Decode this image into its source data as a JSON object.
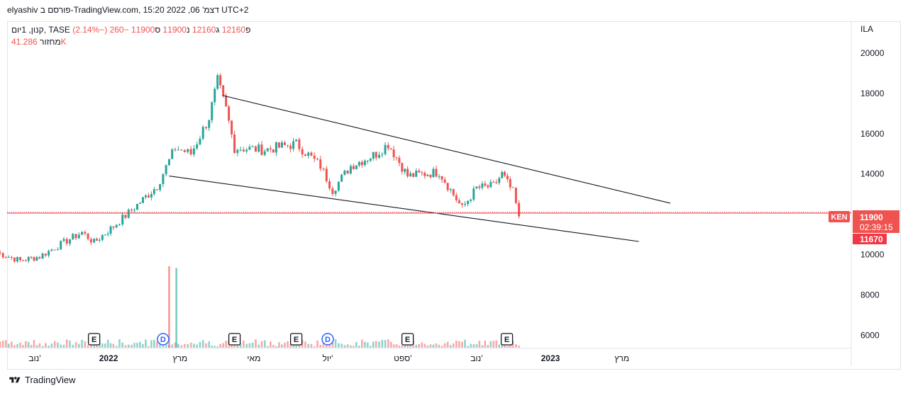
{
  "header": {
    "publisher": "elyashiv פורסם ב-TradingView.com",
    "timestamp": "דצמ' 06, 2022 15:20 UTC+2"
  },
  "legend": {
    "symbol": "קנון, 1יום, TASE",
    "open_label": "פ",
    "open": "12160",
    "high_label": "ג",
    "high": "12160",
    "low_label": "נ",
    "low": "11900",
    "close_label": "ס",
    "close": "11900",
    "change": "−260 (−2.14%)",
    "volume_label": "מחזור",
    "volume": "41.286K"
  },
  "price_axis": {
    "currency": "ILA",
    "ticks": [
      "20000",
      "18000",
      "16000",
      "14000",
      "10000",
      "8000",
      "6000"
    ]
  },
  "price_badges": {
    "ticker": "KEN",
    "last_price": "11900",
    "countdown": "02:39:15",
    "line_price": "11670"
  },
  "time_axis": {
    "labels": [
      "נוב'",
      "2022",
      "מרץ",
      "מאי",
      "יול'",
      "ספט'",
      "נוב'",
      "2023",
      "מרץ"
    ]
  },
  "events": [
    {
      "type": "E"
    },
    {
      "type": "D"
    },
    {
      "type": "E"
    },
    {
      "type": "E"
    },
    {
      "type": "D"
    },
    {
      "type": "E"
    },
    {
      "type": "E"
    }
  ],
  "colors": {
    "up": "#26a69a",
    "down": "#ef5350",
    "line": "#131722",
    "accent": "#f23645",
    "event_d": "#2962ff"
  },
  "chart_data": {
    "type": "candlestick",
    "y_range": [
      5000,
      21000
    ],
    "last_price": 11900,
    "horizontal_line": 11670,
    "price_path": [
      [
        "2021-10-01",
        10100
      ],
      [
        "2021-10-20",
        9700
      ],
      [
        "2021-11-05",
        9900
      ],
      [
        "2021-11-25",
        10600
      ],
      [
        "2021-12-10",
        11100
      ],
      [
        "2021-12-20",
        10600
      ],
      [
        "2022-01-05",
        11400
      ],
      [
        "2022-01-20",
        12200
      ],
      [
        "2022-02-10",
        13400
      ],
      [
        "2022-02-25",
        15300
      ],
      [
        "2022-03-10",
        15000
      ],
      [
        "2022-03-25",
        16800
      ],
      [
        "2022-04-01",
        18600
      ],
      [
        "2022-04-08",
        17200
      ],
      [
        "2022-04-15",
        15300
      ],
      [
        "2022-05-10",
        15200
      ],
      [
        "2022-06-05",
        15500
      ],
      [
        "2022-06-25",
        14400
      ],
      [
        "2022-07-05",
        13200
      ],
      [
        "2022-07-20",
        14400
      ],
      [
        "2022-08-10",
        15000
      ],
      [
        "2022-08-20",
        15500
      ],
      [
        "2022-09-05",
        13900
      ],
      [
        "2022-10-01",
        14100
      ],
      [
        "2022-10-20",
        12300
      ],
      [
        "2022-11-01",
        13300
      ],
      [
        "2022-11-15",
        13400
      ],
      [
        "2022-11-22",
        14000
      ],
      [
        "2022-12-01",
        13100
      ],
      [
        "2022-12-06",
        11900
      ]
    ],
    "trendlines": [
      {
        "name": "upper",
        "from": [
          "2022-04-05",
          17900
        ],
        "to": [
          "2023-04-10",
          12550
        ]
      },
      {
        "name": "lower",
        "from": [
          "2022-02-20",
          13900
        ],
        "to": [
          "2023-03-15",
          10650
        ]
      }
    ],
    "volume_spikes": [
      {
        "date": "2022-02-20",
        "relative": 1.0
      },
      {
        "date": "2022-02-26",
        "relative": 0.98
      }
    ]
  }
}
